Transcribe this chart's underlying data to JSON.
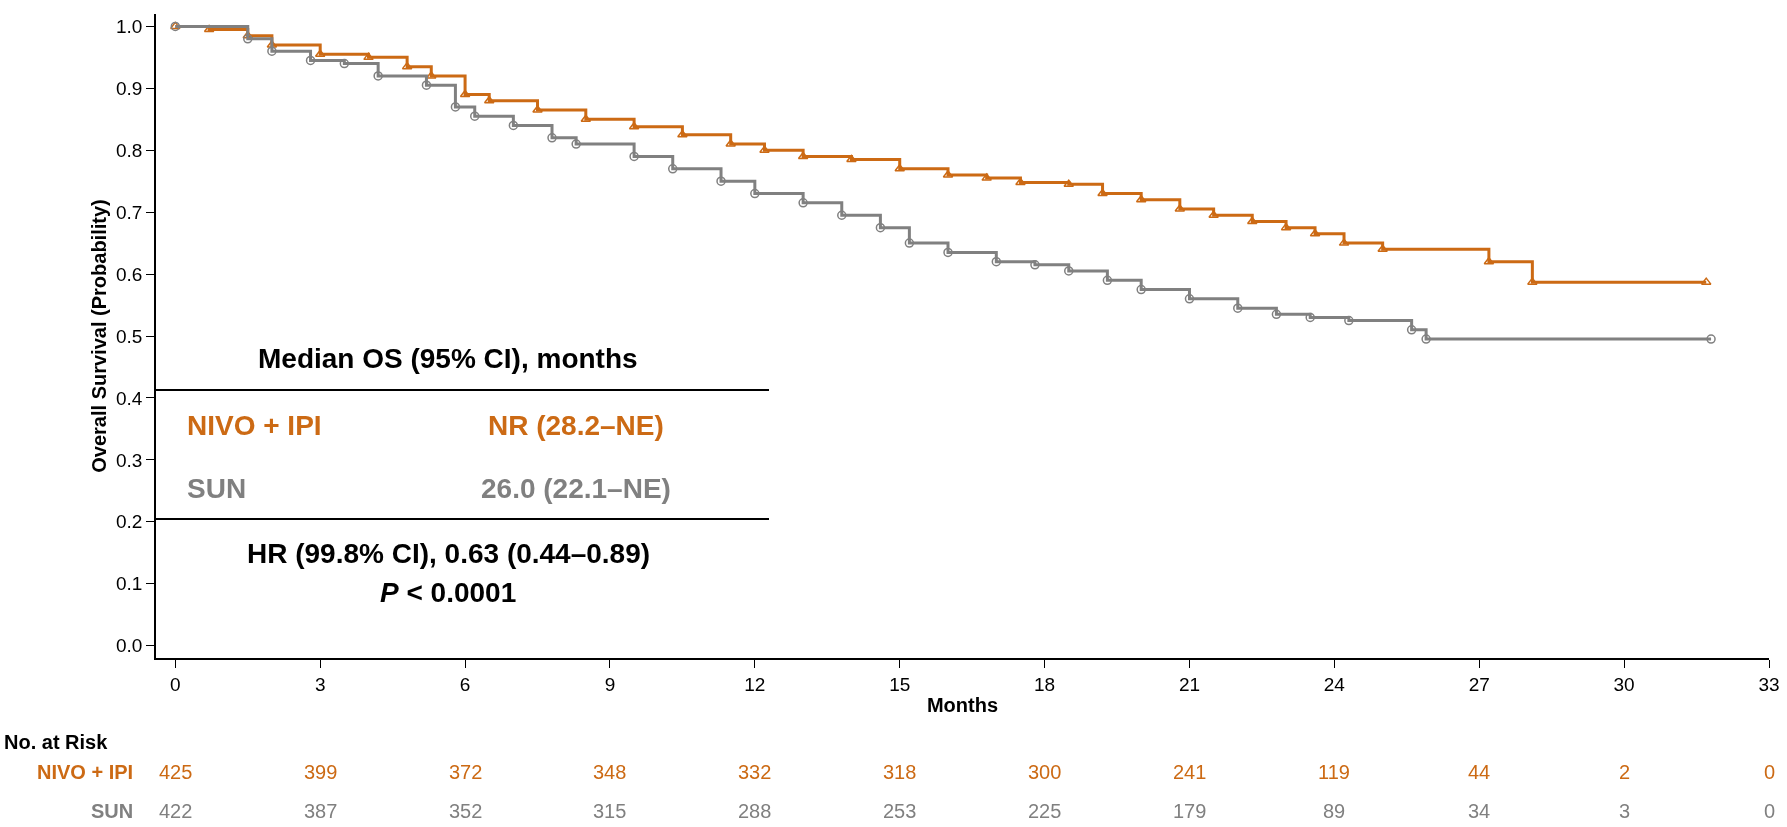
{
  "chart_data": {
    "type": "step",
    "xlabel": "Months",
    "ylabel": "Overall Survival (Probability)",
    "xlim": [
      -0.4,
      33
    ],
    "ylim": [
      -0.02,
      1.02
    ],
    "xticks": [
      0,
      3,
      6,
      9,
      12,
      15,
      18,
      21,
      24,
      27,
      30,
      33
    ],
    "yticks": [
      {
        "value": 0,
        "label": "0.0"
      },
      {
        "value": 0.1,
        "label": "0.1"
      },
      {
        "value": 0.2,
        "label": "0.2"
      },
      {
        "value": 0.3,
        "label": "0.3"
      },
      {
        "value": 0.4,
        "label": "0.4"
      },
      {
        "value": 0.5,
        "label": "0.5"
      },
      {
        "value": 0.6,
        "label": "0.6"
      },
      {
        "value": 0.7,
        "label": "0.7"
      },
      {
        "value": 0.8,
        "label": "0.8"
      },
      {
        "value": 0.9,
        "label": "0.9"
      },
      {
        "value": 1,
        "label": "1.0"
      }
    ],
    "grid": false,
    "legend": false,
    "line_style": "solid",
    "series": [
      {
        "name": "NIVO + IPI",
        "color": "#cc6a14",
        "marker": "triangle",
        "x": [
          0,
          0.7,
          1.5,
          2,
          3,
          4,
          4.8,
          5.3,
          6,
          6.5,
          7.5,
          8.5,
          9.5,
          10.5,
          11.5,
          12.2,
          13,
          14,
          15,
          16,
          16.8,
          17.5,
          18.5,
          19.2,
          20,
          20.8,
          21.5,
          22.3,
          23,
          23.6,
          24.2,
          25,
          27.2,
          28.1,
          31.7
        ],
        "values": [
          1.0,
          0.995,
          0.985,
          0.97,
          0.955,
          0.95,
          0.935,
          0.92,
          0.89,
          0.88,
          0.865,
          0.85,
          0.838,
          0.825,
          0.81,
          0.8,
          0.79,
          0.785,
          0.77,
          0.76,
          0.755,
          0.748,
          0.745,
          0.73,
          0.72,
          0.705,
          0.695,
          0.685,
          0.675,
          0.665,
          0.65,
          0.64,
          0.62,
          0.587,
          0.587
        ]
      },
      {
        "name": "SUN",
        "color": "#808080",
        "marker": "circle",
        "x": [
          0,
          1.5,
          2,
          2.8,
          3.5,
          4.2,
          5.2,
          5.8,
          6.2,
          7,
          7.8,
          8.3,
          9.5,
          10.3,
          11.3,
          12,
          13,
          13.8,
          14.6,
          15.2,
          16,
          17,
          17.8,
          18.5,
          19.3,
          20,
          21,
          22,
          22.8,
          23.5,
          24.3,
          25.6,
          25.9,
          31.8
        ],
        "values": [
          1.0,
          0.98,
          0.96,
          0.945,
          0.94,
          0.92,
          0.905,
          0.87,
          0.855,
          0.84,
          0.82,
          0.81,
          0.79,
          0.77,
          0.75,
          0.73,
          0.715,
          0.695,
          0.675,
          0.65,
          0.635,
          0.62,
          0.615,
          0.605,
          0.59,
          0.575,
          0.56,
          0.545,
          0.535,
          0.53,
          0.525,
          0.51,
          0.495,
          0.495
        ]
      }
    ],
    "annotations": [
      "Median OS (95% CI), months",
      "NR (28.2–NE)",
      "26.0 (22.1–NE)",
      "HR (99.8% CI), 0.63 (0.44–0.89)",
      "P < 0.0001",
      "No. at Risk",
      "425",
      "399",
      "372",
      "348",
      "332",
      "318",
      "300",
      "241",
      "119",
      "44",
      "2",
      "0",
      "422",
      "387",
      "352",
      "315",
      "288",
      "253",
      "225",
      "179",
      "89",
      "34",
      "3",
      "0"
    ]
  }
}
